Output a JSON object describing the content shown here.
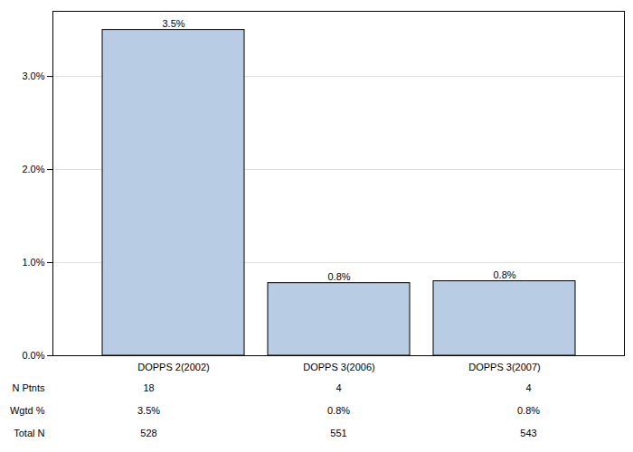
{
  "chart_data": {
    "type": "bar",
    "categories": [
      "DOPPS 2(2002)",
      "DOPPS 3(2006)",
      "DOPPS 3(2007)"
    ],
    "values": [
      3.5,
      0.78,
      0.8
    ],
    "value_labels": [
      "3.5%",
      "0.8%",
      "0.8%"
    ],
    "data_labels": true,
    "color": "#b8cce4",
    "ylim": [
      0,
      3.7
    ],
    "yticks": [
      {
        "value": 0,
        "label": "0.0%"
      },
      {
        "value": 1,
        "label": "1.0%"
      },
      {
        "value": 2,
        "label": "2.0%"
      },
      {
        "value": 3,
        "label": "3.0%"
      }
    ],
    "grid": true,
    "table": {
      "rows": [
        {
          "label": "N Ptnts",
          "values": [
            18,
            4,
            4
          ]
        },
        {
          "label": "Wgtd %",
          "values": [
            "3.5%",
            "0.8%",
            "0.8%"
          ]
        },
        {
          "label": "Total N",
          "values": [
            528,
            551,
            543
          ]
        }
      ]
    }
  }
}
